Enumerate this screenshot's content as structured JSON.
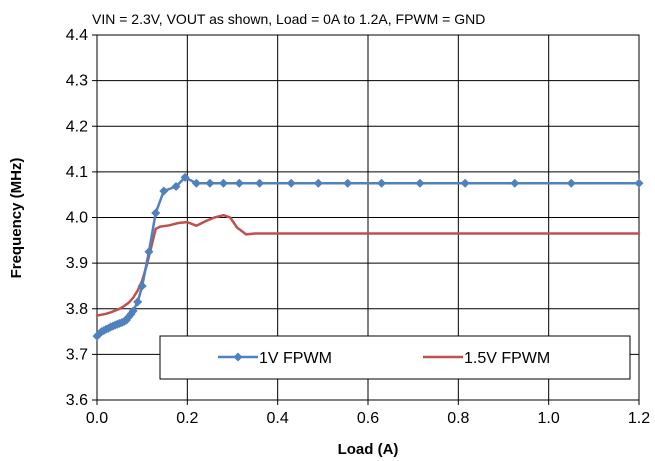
{
  "chart_data": {
    "type": "line",
    "title": "VIN = 2.3V, VOUT as shown, Load = 0A to 1.2A, FPWM = GND",
    "xlabel": "Load (A)",
    "ylabel": "Frequency (MHz)",
    "xlim": [
      0,
      1.2
    ],
    "ylim": [
      3.6,
      4.4
    ],
    "x_ticks": [
      "0.0",
      "0.2",
      "0.4",
      "0.6",
      "0.8",
      "1.0",
      "1.2"
    ],
    "y_ticks": [
      "3.6",
      "3.7",
      "3.8",
      "3.9",
      "4.0",
      "4.1",
      "4.2",
      "4.3",
      "4.4"
    ],
    "grid": true,
    "legend_position": "bottom-right",
    "series": [
      {
        "name": "1V FPWM",
        "color": "#4f81bd",
        "marker": "diamond",
        "x": [
          0.0,
          0.005,
          0.01,
          0.015,
          0.02,
          0.025,
          0.03,
          0.035,
          0.04,
          0.045,
          0.05,
          0.055,
          0.06,
          0.065,
          0.07,
          0.075,
          0.08,
          0.09,
          0.1,
          0.115,
          0.13,
          0.148,
          0.175,
          0.195,
          0.22,
          0.25,
          0.28,
          0.315,
          0.36,
          0.43,
          0.49,
          0.555,
          0.63,
          0.715,
          0.815,
          0.925,
          1.05,
          1.2
        ],
        "y": [
          3.74,
          3.745,
          3.75,
          3.752,
          3.755,
          3.757,
          3.76,
          3.762,
          3.764,
          3.766,
          3.768,
          3.77,
          3.772,
          3.775,
          3.782,
          3.788,
          3.795,
          3.815,
          3.85,
          3.925,
          4.01,
          4.058,
          4.068,
          4.088,
          4.075,
          4.075,
          4.075,
          4.075,
          4.075,
          4.075,
          4.075,
          4.075,
          4.075,
          4.075,
          4.075,
          4.075,
          4.075,
          4.075
        ]
      },
      {
        "name": "1.5V FPWM",
        "color": "#c0504d",
        "marker": "none",
        "x": [
          0.0,
          0.01,
          0.02,
          0.03,
          0.04,
          0.05,
          0.06,
          0.07,
          0.08,
          0.09,
          0.1,
          0.11,
          0.12,
          0.13,
          0.14,
          0.16,
          0.18,
          0.2,
          0.22,
          0.24,
          0.26,
          0.28,
          0.295,
          0.31,
          0.33,
          0.35,
          0.4,
          0.5,
          0.6,
          0.7,
          0.8,
          0.9,
          1.0,
          1.1,
          1.2
        ],
        "y": [
          3.785,
          3.787,
          3.789,
          3.792,
          3.796,
          3.8,
          3.806,
          3.813,
          3.824,
          3.84,
          3.862,
          3.895,
          3.935,
          3.975,
          3.98,
          3.983,
          3.988,
          3.99,
          3.982,
          3.992,
          4.0,
          4.005,
          4.0,
          3.978,
          3.963,
          3.965,
          3.965,
          3.965,
          3.965,
          3.965,
          3.965,
          3.965,
          3.965,
          3.965,
          3.965
        ]
      }
    ]
  }
}
